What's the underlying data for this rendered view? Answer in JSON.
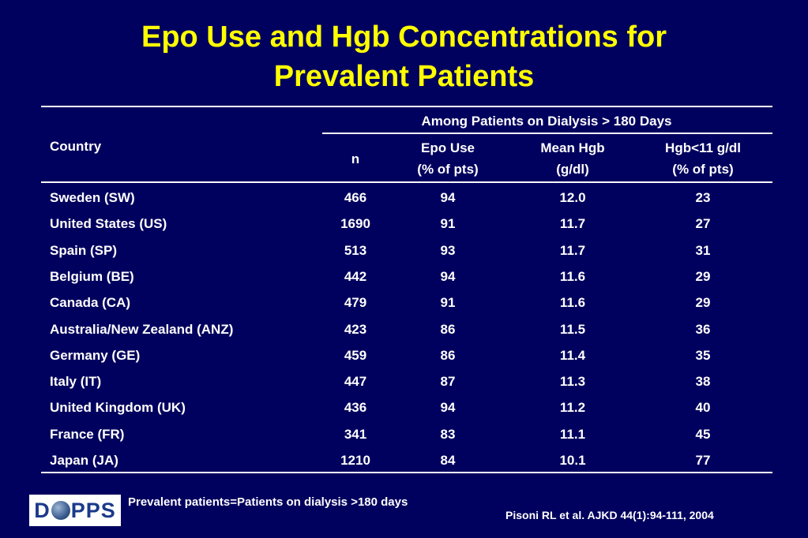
{
  "title": {
    "line1": "Epo Use and Hgb Concentrations for",
    "line2": "Prevalent Patients"
  },
  "table": {
    "header": {
      "country": "Country",
      "group": "Among Patients on Dialysis > 180 Days",
      "n": "n",
      "epo_line1": "Epo Use",
      "epo_line2": "(% of pts)",
      "hgb_line1": "Mean Hgb",
      "hgb_line2": "(g/dl)",
      "low_line1": "Hgb<11 g/dl",
      "low_line2": "(% of pts)"
    },
    "rows": [
      {
        "country": "Sweden (SW)",
        "n": "466",
        "epo": "94",
        "hgb": "12.0",
        "low": "23"
      },
      {
        "country": "United States (US)",
        "n": "1690",
        "epo": "91",
        "hgb": "11.7",
        "low": "27"
      },
      {
        "country": "Spain (SP)",
        "n": "513",
        "epo": "93",
        "hgb": "11.7",
        "low": "31"
      },
      {
        "country": "Belgium (BE)",
        "n": "442",
        "epo": "94",
        "hgb": "11.6",
        "low": "29"
      },
      {
        "country": "Canada (CA)",
        "n": "479",
        "epo": "91",
        "hgb": "11.6",
        "low": "29"
      },
      {
        "country": "Australia/New Zealand (ANZ)",
        "n": "423",
        "epo": "86",
        "hgb": "11.5",
        "low": "36"
      },
      {
        "country": "Germany (GE)",
        "n": "459",
        "epo": "86",
        "hgb": "11.4",
        "low": "35"
      },
      {
        "country": "Italy (IT)",
        "n": "447",
        "epo": "87",
        "hgb": "11.3",
        "low": "38"
      },
      {
        "country": "United Kingdom (UK)",
        "n": "436",
        "epo": "94",
        "hgb": "11.2",
        "low": "40"
      },
      {
        "country": "France (FR)",
        "n": "341",
        "epo": "83",
        "hgb": "11.1",
        "low": "45"
      },
      {
        "country": "Japan (JA)",
        "n": "1210",
        "epo": "84",
        "hgb": "10.1",
        "low": "77"
      }
    ]
  },
  "logo": {
    "text_left": "D",
    "text_right": "PPS"
  },
  "footnote": "Prevalent patients=Patients on dialysis >180 days",
  "citation": "Pisoni RL et al. AJKD 44(1):94-111, 2004",
  "colors": {
    "background": "#00005e",
    "title": "#ffff00",
    "text": "#ffffff"
  }
}
